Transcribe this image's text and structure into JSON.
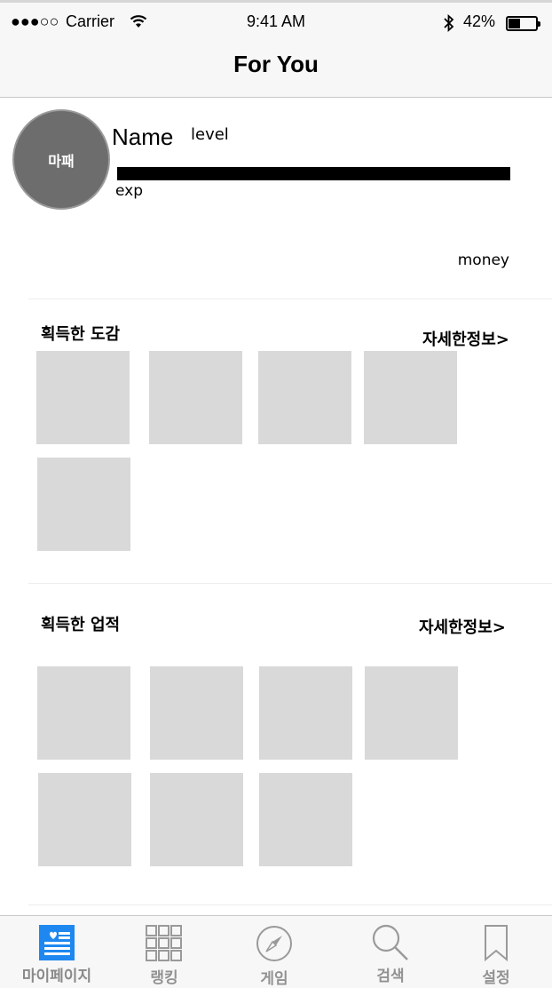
{
  "status_bar": {
    "signal": "●●●○○",
    "carrier": "Carrier",
    "time": "9:41 AM",
    "battery": "42%",
    "battery_level": 0.42
  },
  "nav": {
    "title": "For You"
  },
  "profile": {
    "avatar_text": "마패",
    "name": "Name",
    "level_label": "level",
    "exp_label": "exp",
    "money_label": "money"
  },
  "collection": {
    "title": "획득한 도감",
    "detail_link": "자세한정보>"
  },
  "achievements": {
    "title": "획득한 업적",
    "detail_link": "자세한정보>"
  },
  "tabs": [
    {
      "label": "마이페이지",
      "icon": "mypage-icon",
      "active": true,
      "color": "#1e88f0"
    },
    {
      "label": "랭킹",
      "icon": "grid-icon"
    },
    {
      "label": "게임",
      "icon": "compass-icon"
    },
    {
      "label": "검색",
      "icon": "search-icon"
    },
    {
      "label": "설정",
      "icon": "bookmark-icon"
    }
  ]
}
